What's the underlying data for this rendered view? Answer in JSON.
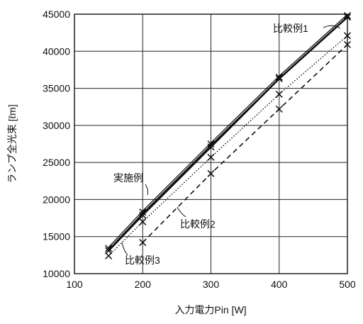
{
  "chart_data": {
    "type": "line",
    "xlabel": "入力電力Pin [W]",
    "ylabel": "ランプ全光束 [ℓm]",
    "xlim": [
      100,
      500
    ],
    "ylim": [
      10000,
      45000
    ],
    "x_ticks": [
      "100",
      "200",
      "300",
      "400",
      "500"
    ],
    "y_ticks": [
      "10000",
      "15000",
      "20000",
      "25000",
      "30000",
      "35000",
      "40000",
      "45000"
    ],
    "grid": true,
    "legend": "annotations",
    "series": [
      {
        "name": "比較例1",
        "style": "solid-double",
        "x": [
          150,
          200,
          300,
          400,
          500
        ],
        "y": [
          13400,
          18300,
          27500,
          36500,
          44800
        ]
      },
      {
        "name": "実施例",
        "style": "solid-bold",
        "x": [
          150,
          200,
          300,
          400,
          500
        ],
        "y": [
          13100,
          17900,
          27100,
          36300,
          44600
        ]
      },
      {
        "name": "比較例3",
        "style": "dotted",
        "x": [
          150,
          200,
          300,
          400,
          500
        ],
        "y": [
          12400,
          17000,
          25700,
          34200,
          42100
        ]
      },
      {
        "name": "比較例2",
        "style": "dashed",
        "x": [
          200,
          300,
          400,
          500
        ],
        "y": [
          14200,
          23500,
          32200,
          40900
        ]
      }
    ]
  }
}
